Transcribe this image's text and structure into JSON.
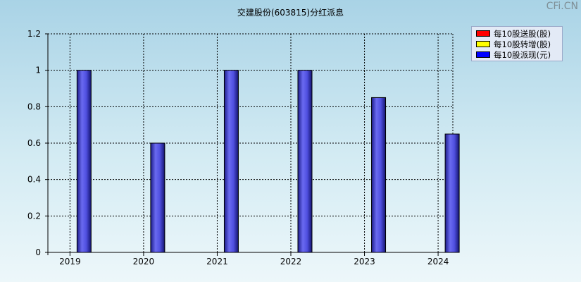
{
  "watermark": "CFi.CN",
  "chart_data": {
    "type": "bar",
    "title": "交建股份(603815)分红派息",
    "categories": [
      "2019",
      "2020",
      "2021",
      "2022",
      "2023",
      "2024"
    ],
    "series": [
      {
        "name": "每10股送股(股)",
        "color": "#ff0000",
        "values": [
          0,
          0,
          0,
          0,
          0,
          0
        ]
      },
      {
        "name": "每10股转增(股)",
        "color": "#ffff00",
        "values": [
          0,
          0,
          0,
          0,
          0,
          0
        ]
      },
      {
        "name": "每10股派现(元)",
        "color": "#0000ff",
        "values": [
          1,
          0.6,
          1,
          1,
          0.85,
          0.65
        ]
      }
    ],
    "ylim": [
      0,
      1.2
    ],
    "yticks": [
      "0",
      "0.2",
      "0.4",
      "0.6",
      "0.8",
      "1",
      "1.2"
    ],
    "grid": true,
    "legend_position": "top-right"
  }
}
